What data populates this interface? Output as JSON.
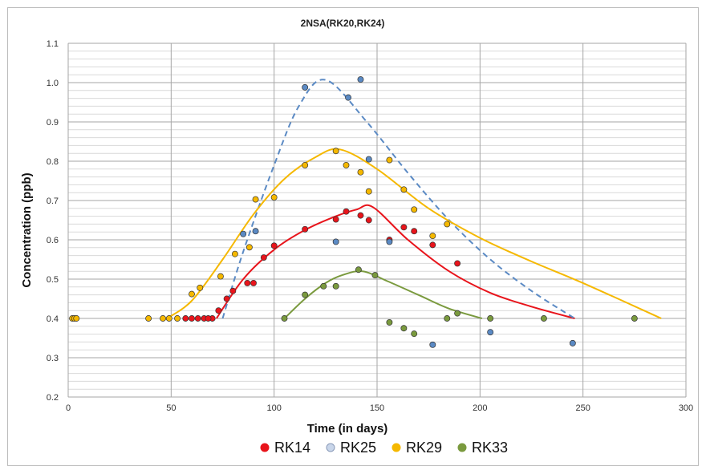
{
  "chart_data": {
    "type": "scatter",
    "title": "2NSA(RK20,RK24)",
    "xlabel": "Time (in days)",
    "ylabel": "Concentration (ppb)",
    "xlim": [
      0,
      300
    ],
    "ylim": [
      0.2,
      1.1
    ],
    "x_ticks": [
      0,
      50,
      100,
      150,
      200,
      250,
      300
    ],
    "y_ticks": [
      0.2,
      0.3,
      0.4,
      0.5,
      0.6,
      0.7,
      0.8,
      0.9,
      1.0,
      1.1
    ],
    "y_tick_labels": [
      "0.2",
      "0.3",
      "0.4",
      "0.5",
      "0.6",
      "0.7",
      "0.8",
      "0.9",
      "1.0",
      "1.1"
    ],
    "grid": true,
    "legend_position": "bottom",
    "series": [
      {
        "name": "RK14",
        "color": "#e8141b",
        "points": [
          [
            70,
            0.4
          ],
          [
            73,
            0.42
          ],
          [
            77,
            0.45
          ],
          [
            80,
            0.47
          ],
          [
            60,
            0.4
          ],
          [
            57,
            0.4
          ],
          [
            63,
            0.4
          ],
          [
            66,
            0.4
          ],
          [
            68,
            0.4
          ],
          [
            87,
            0.49
          ],
          [
            90,
            0.49
          ],
          [
            95,
            0.555
          ],
          [
            100,
            0.585
          ],
          [
            115,
            0.627
          ],
          [
            130,
            0.652
          ],
          [
            135,
            0.672
          ],
          [
            142,
            0.662
          ],
          [
            146,
            0.65
          ],
          [
            156,
            0.6
          ],
          [
            163,
            0.632
          ],
          [
            168,
            0.622
          ],
          [
            177,
            0.587
          ],
          [
            189,
            0.54
          ]
        ],
        "fit": [
          [
            72,
            0.4
          ],
          [
            85,
            0.5
          ],
          [
            100,
            0.575
          ],
          [
            115,
            0.625
          ],
          [
            130,
            0.66
          ],
          [
            140,
            0.677
          ],
          [
            148,
            0.683
          ],
          [
            165,
            0.6
          ],
          [
            185,
            0.52
          ],
          [
            205,
            0.465
          ],
          [
            225,
            0.43
          ],
          [
            246,
            0.4
          ]
        ],
        "fit_style": "solid"
      },
      {
        "name": "RK25",
        "color": "#5b8ac4",
        "points": [
          [
            85,
            0.615
          ],
          [
            91,
            0.622
          ],
          [
            115,
            0.988
          ],
          [
            136,
            0.962
          ],
          [
            142,
            1.008
          ],
          [
            146,
            0.805
          ],
          [
            130,
            0.595
          ],
          [
            156,
            0.595
          ],
          [
            177,
            0.333
          ],
          [
            205,
            0.365
          ],
          [
            245,
            0.337
          ]
        ],
        "fit": [
          [
            75,
            0.4
          ],
          [
            85,
            0.57
          ],
          [
            100,
            0.79
          ],
          [
            112,
            0.94
          ],
          [
            125,
            1.007
          ],
          [
            145,
            0.9
          ],
          [
            165,
            0.77
          ],
          [
            185,
            0.65
          ],
          [
            205,
            0.55
          ],
          [
            225,
            0.47
          ],
          [
            246,
            0.4
          ]
        ],
        "fit_style": "dashed"
      },
      {
        "name": "RK29",
        "color": "#f5b800",
        "points": [
          [
            2,
            0.4
          ],
          [
            3,
            0.4
          ],
          [
            4,
            0.4
          ],
          [
            39,
            0.4
          ],
          [
            46,
            0.4
          ],
          [
            49,
            0.4
          ],
          [
            53,
            0.4
          ],
          [
            60,
            0.462
          ],
          [
            64,
            0.478
          ],
          [
            74,
            0.507
          ],
          [
            81,
            0.564
          ],
          [
            88,
            0.581
          ],
          [
            91,
            0.703
          ],
          [
            100,
            0.708
          ],
          [
            115,
            0.79
          ],
          [
            130,
            0.826
          ],
          [
            135,
            0.79
          ],
          [
            142,
            0.772
          ],
          [
            146,
            0.723
          ],
          [
            156,
            0.803
          ],
          [
            163,
            0.728
          ],
          [
            168,
            0.677
          ],
          [
            177,
            0.61
          ],
          [
            184,
            0.64
          ]
        ],
        "fit": [
          [
            48,
            0.4
          ],
          [
            60,
            0.445
          ],
          [
            75,
            0.55
          ],
          [
            90,
            0.665
          ],
          [
            105,
            0.755
          ],
          [
            120,
            0.81
          ],
          [
            132,
            0.83
          ],
          [
            150,
            0.78
          ],
          [
            175,
            0.68
          ],
          [
            200,
            0.605
          ],
          [
            225,
            0.545
          ],
          [
            250,
            0.49
          ],
          [
            288,
            0.4
          ]
        ],
        "fit_style": "solid"
      },
      {
        "name": "RK33",
        "color": "#7a9a3e",
        "points": [
          [
            105,
            0.4
          ],
          [
            115,
            0.46
          ],
          [
            124,
            0.482
          ],
          [
            130,
            0.482
          ],
          [
            141,
            0.524
          ],
          [
            149,
            0.51
          ],
          [
            156,
            0.39
          ],
          [
            163,
            0.375
          ],
          [
            168,
            0.361
          ],
          [
            184,
            0.4
          ],
          [
            189,
            0.413
          ],
          [
            205,
            0.4
          ],
          [
            231,
            0.4
          ],
          [
            275,
            0.4
          ]
        ],
        "fit": [
          [
            105,
            0.4
          ],
          [
            115,
            0.45
          ],
          [
            125,
            0.49
          ],
          [
            133,
            0.51
          ],
          [
            143,
            0.52
          ],
          [
            155,
            0.495
          ],
          [
            170,
            0.46
          ],
          [
            185,
            0.425
          ],
          [
            201,
            0.4
          ]
        ],
        "fit_style": "solid"
      }
    ]
  }
}
